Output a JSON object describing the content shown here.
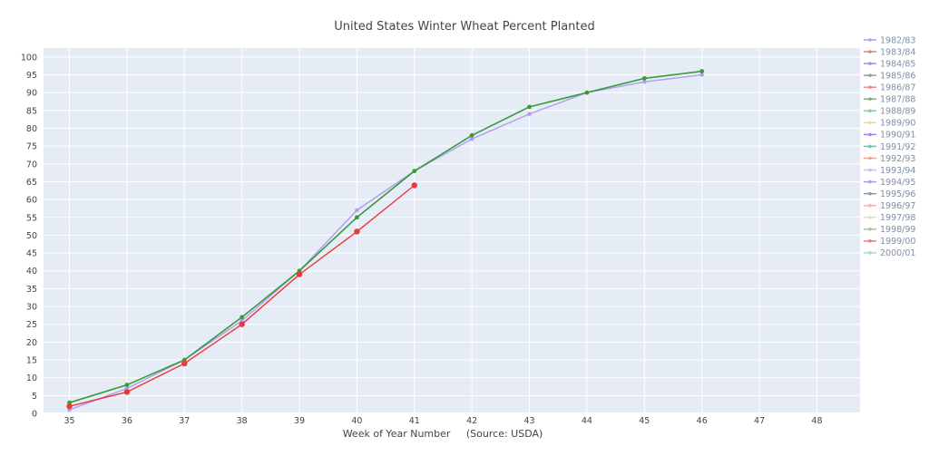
{
  "chart_data": {
    "type": "line",
    "title": "United States Winter Wheat Percent Planted",
    "xlabel": "Week of Year Number     (Source: USDA)",
    "ylabel": "",
    "xlim": [
      34.55,
      48.75
    ],
    "ylim": [
      0,
      102.5
    ],
    "x_ticks": [
      35,
      36,
      37,
      38,
      39,
      40,
      41,
      42,
      43,
      44,
      45,
      46,
      47,
      48
    ],
    "y_ticks": [
      0,
      5,
      10,
      15,
      20,
      25,
      30,
      35,
      40,
      45,
      50,
      55,
      60,
      65,
      70,
      75,
      80,
      85,
      90,
      95,
      100
    ],
    "grid": true,
    "legend_position": "right",
    "colors": {
      "plot_background": "#e5ecf6",
      "gridline": "#ffffff",
      "green_series": "#3a9a3a",
      "purple_series": "#b19cf0",
      "red_series": "#e83a3a"
    },
    "legend": [
      {
        "name": "1982/83",
        "color": "#a3a0ff"
      },
      {
        "name": "1983/84",
        "color": "#d08a6e"
      },
      {
        "name": "1984/85",
        "color": "#9c8fe8"
      },
      {
        "name": "1985/86",
        "color": "#8aa0a8"
      },
      {
        "name": "1986/87",
        "color": "#f08a80"
      },
      {
        "name": "1987/88",
        "color": "#7dab82"
      },
      {
        "name": "1988/89",
        "color": "#80cfa0"
      },
      {
        "name": "1989/90",
        "color": "#f5d5a0"
      },
      {
        "name": "1990/91",
        "color": "#9a85f5"
      },
      {
        "name": "1991/92",
        "color": "#6cc9a4"
      },
      {
        "name": "1992/93",
        "color": "#f5a090"
      },
      {
        "name": "1993/94",
        "color": "#c8c2f2"
      },
      {
        "name": "1994/95",
        "color": "#a89cf0"
      },
      {
        "name": "1995/96",
        "color": "#8f98b2"
      },
      {
        "name": "1996/97",
        "color": "#f4b7a8"
      },
      {
        "name": "1997/98",
        "color": "#f2dcb8"
      },
      {
        "name": "1998/99",
        "color": "#a7c0a0"
      },
      {
        "name": "1999/00",
        "color": "#f07c7c"
      },
      {
        "name": "2000/01",
        "color": "#a8dcd0"
      }
    ],
    "series": [
      {
        "color": "#b19cf0",
        "marker_size": 2.2,
        "stroke_width": 1.4,
        "x": [
          35,
          36,
          37,
          38,
          39,
          40,
          41,
          42,
          43,
          44,
          45,
          46
        ],
        "y": [
          1,
          7,
          15,
          26,
          40,
          57,
          68,
          77,
          84,
          90,
          93,
          95
        ]
      },
      {
        "color": "#3a9a3a",
        "marker_size": 2.4,
        "stroke_width": 1.6,
        "x": [
          35,
          36,
          37,
          38,
          39,
          40,
          41,
          42,
          43,
          44,
          45,
          46
        ],
        "y": [
          3,
          8,
          15,
          27,
          40,
          55,
          68,
          78,
          86,
          90,
          94,
          96
        ]
      },
      {
        "color": "#e83a3a",
        "marker_size": 3.2,
        "stroke_width": 1.4,
        "x": [
          35,
          36,
          37,
          38,
          39,
          40,
          41
        ],
        "y": [
          2,
          6,
          14,
          25,
          39,
          51,
          64
        ]
      }
    ]
  }
}
